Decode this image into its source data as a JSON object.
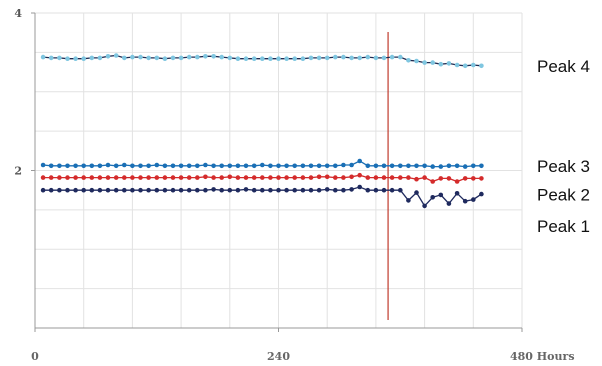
{
  "chart_data": {
    "type": "line",
    "title": "",
    "xlabel": "",
    "ylabel": "",
    "x_ticks": [
      {
        "value": 0,
        "label": "0"
      },
      {
        "value": 240,
        "label": "240"
      },
      {
        "value": 480,
        "label": "480 Hours"
      }
    ],
    "y_ticks": [
      {
        "value": 2,
        "label": "2"
      },
      {
        "value": 4,
        "label": "4"
      }
    ],
    "xlim": [
      0,
      480
    ],
    "ylim": [
      0,
      4
    ],
    "grid": true,
    "vertical_marker": {
      "x": 348,
      "color": "#c0392b"
    },
    "series": [
      {
        "name": "Peak 4",
        "color": "#7fc6e0",
        "line_color": "#1f2a50",
        "x": [
          8,
          16,
          24,
          32,
          40,
          48,
          56,
          64,
          72,
          80,
          88,
          96,
          104,
          112,
          120,
          128,
          136,
          144,
          152,
          160,
          168,
          176,
          184,
          192,
          200,
          208,
          216,
          224,
          232,
          240,
          248,
          256,
          264,
          272,
          280,
          288,
          296,
          304,
          312,
          320,
          328,
          336,
          344,
          352,
          360,
          368,
          376,
          384,
          392,
          400,
          408,
          416,
          424,
          432,
          440
        ],
        "values": [
          3.44,
          3.43,
          3.43,
          3.42,
          3.42,
          3.42,
          3.43,
          3.43,
          3.45,
          3.46,
          3.43,
          3.44,
          3.44,
          3.43,
          3.43,
          3.42,
          3.43,
          3.43,
          3.44,
          3.44,
          3.45,
          3.45,
          3.44,
          3.43,
          3.42,
          3.42,
          3.42,
          3.42,
          3.42,
          3.42,
          3.42,
          3.42,
          3.42,
          3.43,
          3.43,
          3.43,
          3.44,
          3.44,
          3.43,
          3.43,
          3.44,
          3.43,
          3.43,
          3.44,
          3.44,
          3.4,
          3.39,
          3.37,
          3.37,
          3.35,
          3.36,
          3.34,
          3.33,
          3.34,
          3.33
        ]
      },
      {
        "name": "Peak 3",
        "color": "#1a6fb5",
        "line_color": "#1a6fb5",
        "x": [
          8,
          16,
          24,
          32,
          40,
          48,
          56,
          64,
          72,
          80,
          88,
          96,
          104,
          112,
          120,
          128,
          136,
          144,
          152,
          160,
          168,
          176,
          184,
          192,
          200,
          208,
          216,
          224,
          232,
          240,
          248,
          256,
          264,
          272,
          280,
          288,
          296,
          304,
          312,
          320,
          328,
          336,
          344,
          352,
          360,
          368,
          376,
          384,
          392,
          400,
          408,
          416,
          424,
          432,
          440
        ],
        "values": [
          2.07,
          2.06,
          2.06,
          2.06,
          2.06,
          2.06,
          2.06,
          2.06,
          2.07,
          2.06,
          2.07,
          2.06,
          2.06,
          2.06,
          2.07,
          2.06,
          2.06,
          2.06,
          2.06,
          2.06,
          2.07,
          2.06,
          2.06,
          2.06,
          2.06,
          2.06,
          2.06,
          2.07,
          2.06,
          2.06,
          2.06,
          2.06,
          2.06,
          2.06,
          2.06,
          2.06,
          2.06,
          2.07,
          2.07,
          2.12,
          2.06,
          2.06,
          2.06,
          2.06,
          2.06,
          2.06,
          2.06,
          2.06,
          2.05,
          2.05,
          2.06,
          2.06,
          2.05,
          2.06,
          2.06
        ]
      },
      {
        "name": "Peak 2",
        "color": "#d42b2b",
        "line_color": "#d42b2b",
        "x": [
          8,
          16,
          24,
          32,
          40,
          48,
          56,
          64,
          72,
          80,
          88,
          96,
          104,
          112,
          120,
          128,
          136,
          144,
          152,
          160,
          168,
          176,
          184,
          192,
          200,
          208,
          216,
          224,
          232,
          240,
          248,
          256,
          264,
          272,
          280,
          288,
          296,
          304,
          312,
          320,
          328,
          336,
          344,
          352,
          360,
          368,
          376,
          384,
          392,
          400,
          408,
          416,
          424,
          432,
          440
        ],
        "values": [
          1.91,
          1.91,
          1.91,
          1.91,
          1.91,
          1.91,
          1.91,
          1.91,
          1.91,
          1.91,
          1.91,
          1.91,
          1.91,
          1.91,
          1.91,
          1.91,
          1.91,
          1.91,
          1.91,
          1.91,
          1.92,
          1.91,
          1.91,
          1.92,
          1.91,
          1.91,
          1.91,
          1.91,
          1.91,
          1.91,
          1.91,
          1.91,
          1.91,
          1.91,
          1.92,
          1.92,
          1.91,
          1.91,
          1.92,
          1.94,
          1.91,
          1.91,
          1.91,
          1.91,
          1.91,
          1.91,
          1.89,
          1.91,
          1.86,
          1.9,
          1.9,
          1.86,
          1.9,
          1.9,
          1.9
        ]
      },
      {
        "name": "Peak 1",
        "color": "#1f2a5e",
        "line_color": "#1f2a5e",
        "x": [
          8,
          16,
          24,
          32,
          40,
          48,
          56,
          64,
          72,
          80,
          88,
          96,
          104,
          112,
          120,
          128,
          136,
          144,
          152,
          160,
          168,
          176,
          184,
          192,
          200,
          208,
          216,
          224,
          232,
          240,
          248,
          256,
          264,
          272,
          280,
          288,
          296,
          304,
          312,
          320,
          328,
          336,
          344,
          352,
          360,
          368,
          376,
          384,
          392,
          400,
          408,
          416,
          424,
          432,
          440
        ],
        "values": [
          1.75,
          1.75,
          1.75,
          1.75,
          1.75,
          1.75,
          1.75,
          1.75,
          1.75,
          1.75,
          1.75,
          1.75,
          1.75,
          1.75,
          1.75,
          1.75,
          1.75,
          1.75,
          1.75,
          1.75,
          1.75,
          1.76,
          1.75,
          1.75,
          1.75,
          1.76,
          1.75,
          1.75,
          1.75,
          1.75,
          1.75,
          1.75,
          1.75,
          1.75,
          1.75,
          1.76,
          1.75,
          1.75,
          1.76,
          1.79,
          1.75,
          1.75,
          1.75,
          1.75,
          1.75,
          1.62,
          1.72,
          1.55,
          1.66,
          1.69,
          1.58,
          1.71,
          1.61,
          1.63,
          1.7
        ]
      }
    ],
    "series_labels": [
      {
        "text": "Peak 4",
        "series": "Peak 4"
      },
      {
        "text": "Peak 3",
        "series": "Peak 3"
      },
      {
        "text": "Peak 2",
        "series": "Peak 2"
      },
      {
        "text": "Peak 1",
        "series": "Peak 1"
      }
    ]
  }
}
